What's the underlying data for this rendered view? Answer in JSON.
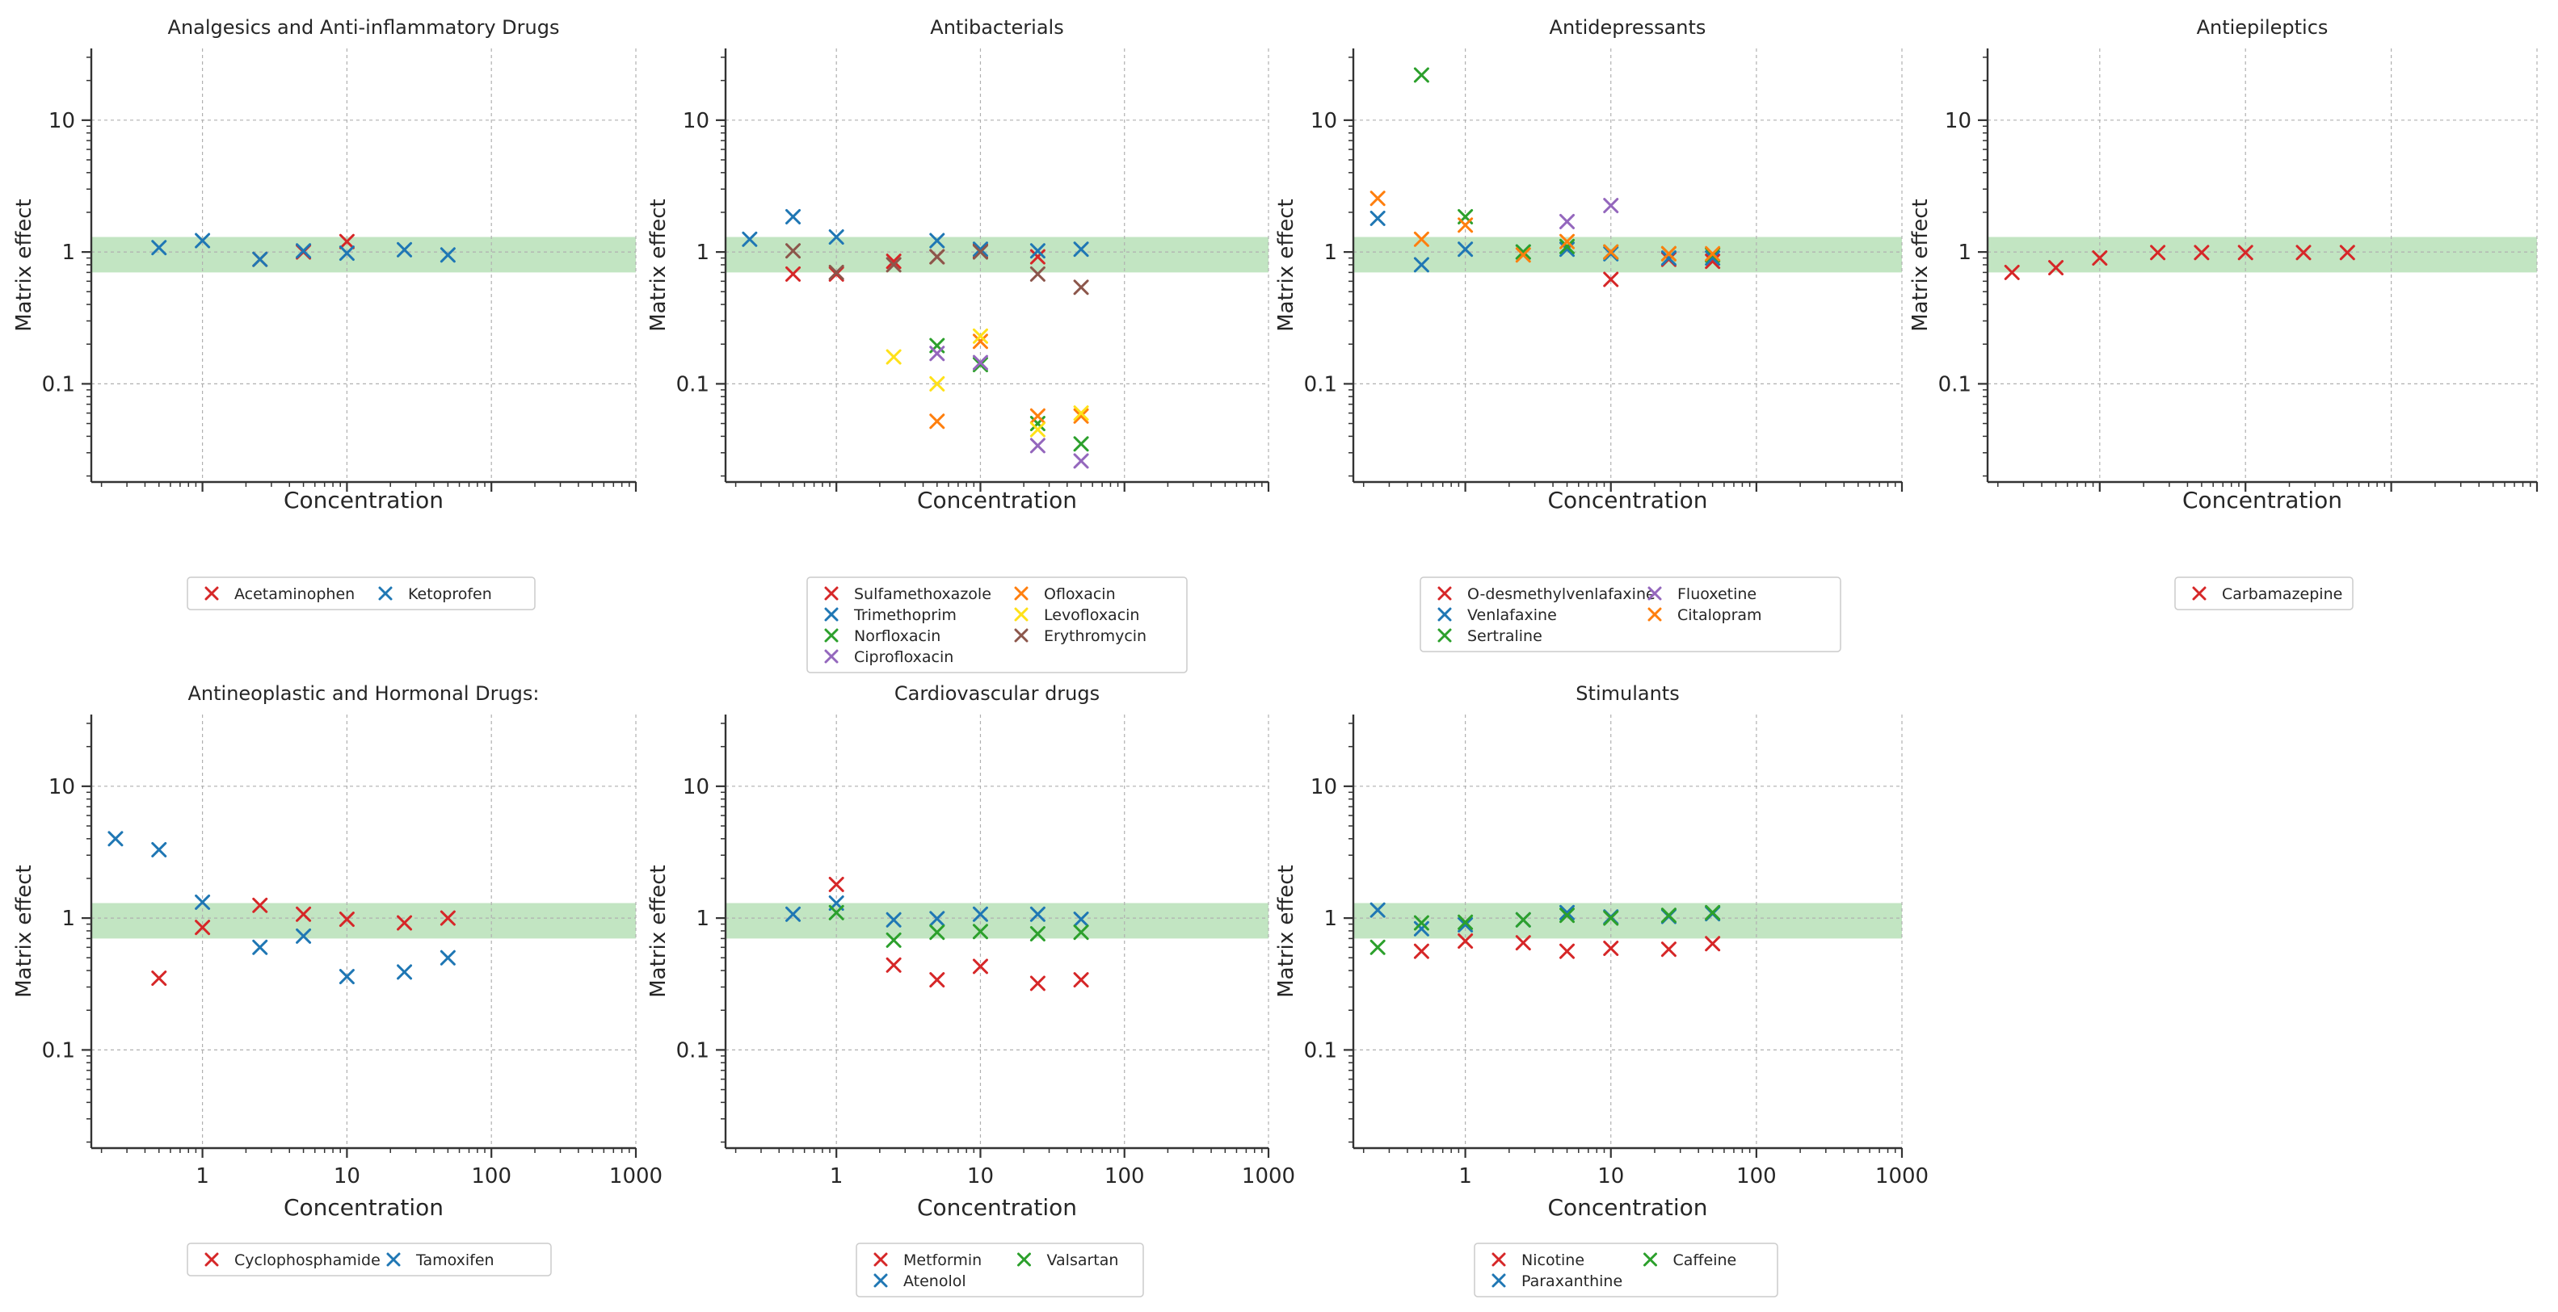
{
  "figure": {
    "common": {
      "xlabel": "Concentration",
      "ylabel": "Matrix effect",
      "y_range": [
        0.018,
        35
      ],
      "x_range": [
        0.17,
        1000
      ],
      "x_ticks": [
        1,
        10,
        100,
        1000
      ],
      "x_tick_labels": [
        "1",
        "10",
        "100",
        "1000"
      ],
      "y_ticks": [
        0.1,
        1,
        10
      ],
      "y_tick_labels": [
        "0.1",
        "1",
        "10"
      ],
      "acceptance_band": [
        0.7,
        1.3
      ],
      "band_color": "#8fcf8f",
      "marker": "x"
    },
    "colors": {
      "red": "#d62728",
      "blue": "#1f77b4",
      "green": "#2ca02c",
      "purple": "#9467bd",
      "orange": "#ff7f0e",
      "yellow": "#ffe119",
      "brown": "#8c564b"
    }
  },
  "chart_data": [
    {
      "type": "scatter",
      "title": "Analgesics and Anti-inflammatory Drugs",
      "xlabel": "Concentration",
      "ylabel": "Matrix effect",
      "xscale": "log",
      "yscale": "log",
      "show_x_tick_labels": false,
      "legend_columns": 2,
      "series": [
        {
          "name": "Acetaminophen",
          "color": "red",
          "x": [
            2.5,
            5,
            10
          ],
          "y": [
            0.88,
            1.0,
            1.2
          ]
        },
        {
          "name": "Ketoprofen",
          "color": "blue",
          "x": [
            0.5,
            1,
            2.5,
            5,
            10,
            25,
            50
          ],
          "y": [
            1.08,
            1.22,
            0.88,
            1.02,
            0.98,
            1.04,
            0.95
          ]
        }
      ]
    },
    {
      "type": "scatter",
      "title": "Antibacterials",
      "xlabel": "Concentration",
      "ylabel": "Matrix effect",
      "xscale": "log",
      "yscale": "log",
      "show_x_tick_labels": false,
      "legend_columns": 2,
      "series": [
        {
          "name": "Sulfamethoxazole",
          "color": "red",
          "x": [
            0.5,
            1,
            2.5,
            5,
            10,
            25
          ],
          "y": [
            0.68,
            0.68,
            0.85,
            0.92,
            1.02,
            0.92
          ]
        },
        {
          "name": "Trimethoprim",
          "color": "blue",
          "x": [
            0.25,
            0.5,
            1,
            5,
            10,
            25,
            50
          ],
          "y": [
            1.25,
            1.85,
            1.3,
            1.22,
            1.05,
            1.02,
            1.05
          ]
        },
        {
          "name": "Norfloxacin",
          "color": "green",
          "x": [
            5,
            10,
            25,
            50
          ],
          "y": [
            0.195,
            0.14,
            0.05,
            0.035
          ]
        },
        {
          "name": "Ciprofloxacin",
          "color": "purple",
          "x": [
            5,
            10,
            25,
            50
          ],
          "y": [
            0.17,
            0.145,
            0.034,
            0.026
          ]
        },
        {
          "name": "Ofloxacin",
          "color": "orange",
          "x": [
            5,
            10,
            25,
            50
          ],
          "y": [
            0.052,
            0.21,
            0.057,
            0.057
          ]
        },
        {
          "name": "Levofloxacin",
          "color": "yellow",
          "x": [
            2.5,
            5,
            10,
            25,
            50
          ],
          "y": [
            0.16,
            0.1,
            0.23,
            0.045,
            0.06
          ]
        },
        {
          "name": "Erythromycin",
          "color": "brown",
          "x": [
            0.5,
            1,
            2.5,
            5,
            10,
            25,
            50
          ],
          "y": [
            1.02,
            0.7,
            0.8,
            0.92,
            1.0,
            0.68,
            0.54
          ]
        }
      ]
    },
    {
      "type": "scatter",
      "title": "Antidepressants",
      "xlabel": "Concentration",
      "ylabel": "Matrix effect",
      "xscale": "log",
      "yscale": "log",
      "show_x_tick_labels": false,
      "legend_columns": 2,
      "series": [
        {
          "name": "O-desmethylvenlafaxine",
          "color": "red",
          "x": [
            10,
            25,
            50
          ],
          "y": [
            0.62,
            0.88,
            0.85
          ]
        },
        {
          "name": "Venlafaxine",
          "color": "blue",
          "x": [
            0.25,
            0.5,
            1,
            2.5,
            5,
            10,
            25,
            50
          ],
          "y": [
            1.8,
            0.8,
            1.05,
            1.0,
            1.05,
            0.97,
            0.9,
            0.9
          ]
        },
        {
          "name": "Sertraline",
          "color": "green",
          "x": [
            0.5,
            1,
            2.5,
            5,
            10,
            25,
            50
          ],
          "y": [
            22.0,
            1.85,
            1.0,
            1.1,
            1.0,
            0.97,
            0.95
          ]
        },
        {
          "name": "Fluoxetine",
          "color": "purple",
          "x": [
            5,
            10
          ],
          "y": [
            1.7,
            2.25
          ]
        },
        {
          "name": "Citalopram",
          "color": "orange",
          "x": [
            0.25,
            0.5,
            1,
            2.5,
            5,
            10,
            25,
            50
          ],
          "y": [
            2.55,
            1.25,
            1.6,
            0.95,
            1.2,
            1.0,
            0.97,
            0.97
          ]
        }
      ]
    },
    {
      "type": "scatter",
      "title": "Antiepileptics",
      "xlabel": "Concentration",
      "ylabel": "Matrix effect",
      "xscale": "log",
      "yscale": "log",
      "show_x_tick_labels": false,
      "legend_columns": 1,
      "series": [
        {
          "name": "Carbamazepine",
          "color": "red",
          "x": [
            0.25,
            0.5,
            1,
            2.5,
            5,
            10,
            25,
            50
          ],
          "y": [
            0.7,
            0.76,
            0.9,
            0.99,
            0.99,
            0.99,
            0.99,
            0.99
          ]
        }
      ]
    },
    {
      "type": "scatter",
      "title": "Antineoplastic and Hormonal Drugs:",
      "xlabel": "Concentration",
      "ylabel": "Matrix effect",
      "xscale": "log",
      "yscale": "log",
      "show_x_tick_labels": true,
      "legend_columns": 2,
      "series": [
        {
          "name": "Cyclophosphamide",
          "color": "red",
          "x": [
            0.5,
            1,
            2.5,
            5,
            10,
            25,
            50
          ],
          "y": [
            0.35,
            0.85,
            1.25,
            1.07,
            0.98,
            0.92,
            1.0
          ]
        },
        {
          "name": "Tamoxifen",
          "color": "blue",
          "x": [
            0.25,
            0.5,
            1,
            2.5,
            5,
            10,
            25,
            50
          ],
          "y": [
            4.0,
            3.3,
            1.32,
            0.6,
            0.73,
            0.36,
            0.39,
            0.5
          ]
        }
      ]
    },
    {
      "type": "scatter",
      "title": "Cardiovascular drugs",
      "xlabel": "Concentration",
      "ylabel": "Matrix effect",
      "xscale": "log",
      "yscale": "log",
      "show_x_tick_labels": true,
      "legend_columns": 2,
      "series": [
        {
          "name": "Metformin",
          "color": "red",
          "x": [
            1,
            2.5,
            5,
            10,
            25,
            50
          ],
          "y": [
            1.8,
            0.44,
            0.34,
            0.43,
            0.32,
            0.34
          ]
        },
        {
          "name": "Atenolol",
          "color": "blue",
          "x": [
            0.5,
            1,
            2.5,
            5,
            10,
            25,
            50
          ],
          "y": [
            1.07,
            1.3,
            0.97,
            0.99,
            1.07,
            1.07,
            0.98
          ]
        },
        {
          "name": "Valsartan",
          "color": "green",
          "x": [
            1,
            2.5,
            5,
            10,
            25,
            50
          ],
          "y": [
            1.1,
            0.68,
            0.78,
            0.79,
            0.76,
            0.78
          ]
        }
      ]
    },
    {
      "type": "scatter",
      "title": "Stimulants",
      "xlabel": "Concentration",
      "ylabel": "Matrix effect",
      "xscale": "log",
      "yscale": "log",
      "show_x_tick_labels": true,
      "legend_columns": 2,
      "series": [
        {
          "name": "Nicotine",
          "color": "red",
          "x": [
            0.5,
            1,
            2.5,
            5,
            10,
            25,
            50
          ],
          "y": [
            0.56,
            0.67,
            0.65,
            0.56,
            0.59,
            0.58,
            0.64
          ]
        },
        {
          "name": "Paraxanthine",
          "color": "blue",
          "x": [
            0.25,
            0.5,
            1,
            2.5,
            5,
            10,
            25,
            50
          ],
          "y": [
            1.15,
            0.83,
            0.89,
            0.97,
            1.1,
            1.02,
            1.03,
            1.08
          ]
        },
        {
          "name": "Caffeine",
          "color": "green",
          "x": [
            0.25,
            0.5,
            1,
            2.5,
            5,
            10,
            25,
            50
          ],
          "y": [
            0.6,
            0.92,
            0.93,
            0.97,
            1.05,
            1.0,
            1.05,
            1.1
          ]
        }
      ]
    }
  ]
}
